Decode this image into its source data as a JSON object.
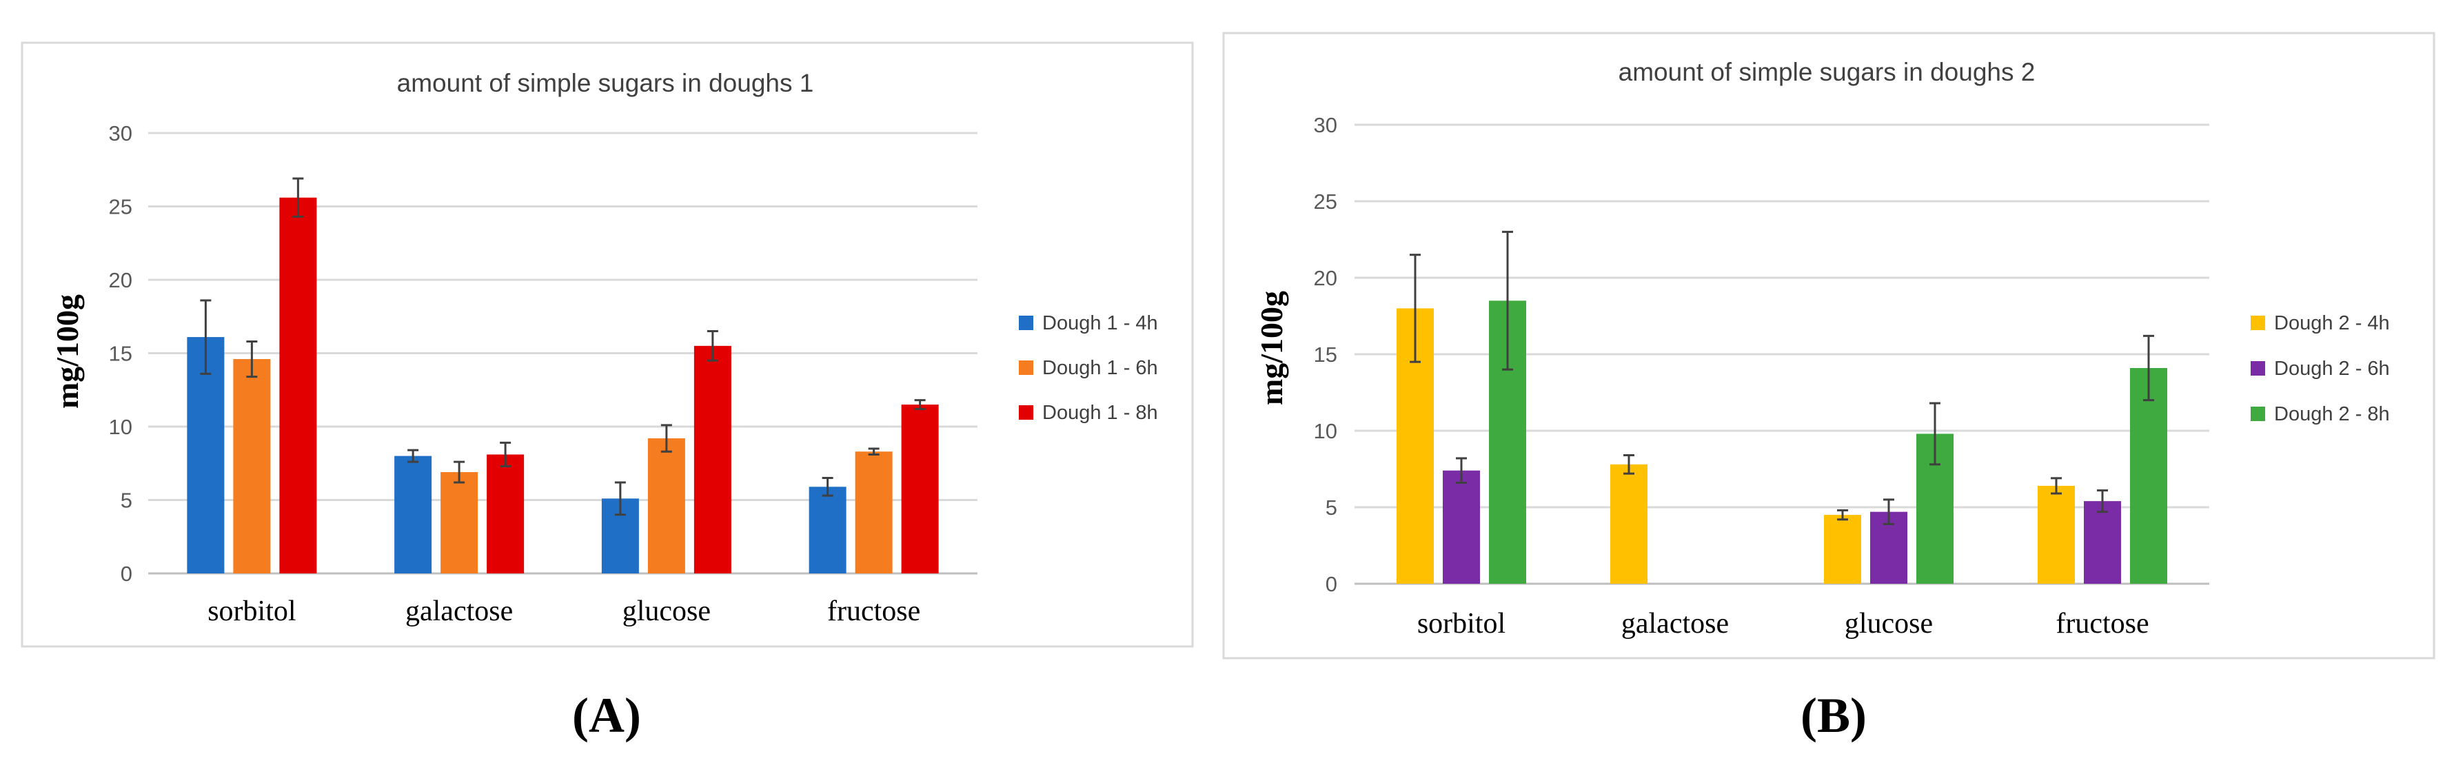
{
  "chart_data": [
    {
      "type": "bar",
      "title": "amount of simple sugars in doughs 1",
      "ylabel": "mg/100g",
      "xlabel": "",
      "ylim": [
        0,
        30
      ],
      "yticks": [
        "0",
        "5",
        "10",
        "15",
        "20",
        "25",
        "30"
      ],
      "categories": [
        "sorbitol",
        "galactose",
        "glucose",
        "fructose"
      ],
      "panel_label": "(A)",
      "legend_position": "right",
      "series": [
        {
          "name": "Dough 1 - 4h",
          "color": "#1F6FC6",
          "values": [
            16.1,
            8.0,
            5.1,
            5.9
          ],
          "errors": [
            2.5,
            0.4,
            1.1,
            0.6
          ]
        },
        {
          "name": "Dough 1 - 6h",
          "color": "#F57C1F",
          "values": [
            14.6,
            6.9,
            9.2,
            8.3
          ],
          "errors": [
            1.2,
            0.7,
            0.9,
            0.2
          ]
        },
        {
          "name": "Dough 1 - 8h",
          "color": "#E20000",
          "values": [
            25.6,
            8.1,
            15.5,
            11.5
          ],
          "errors": [
            1.3,
            0.8,
            1.0,
            0.3
          ]
        }
      ]
    },
    {
      "type": "bar",
      "title": "amount of simple sugars in doughs 2",
      "ylabel": "mg/100g",
      "xlabel": "",
      "ylim": [
        0,
        30
      ],
      "yticks": [
        "0",
        "5",
        "10",
        "15",
        "20",
        "25",
        "30"
      ],
      "categories": [
        "sorbitol",
        "galactose",
        "glucose",
        "fructose"
      ],
      "panel_label": "(B)",
      "legend_position": "right",
      "series": [
        {
          "name": "Dough 2 - 4h",
          "color": "#FFC000",
          "values": [
            18.0,
            7.8,
            4.5,
            6.4
          ],
          "errors": [
            3.5,
            0.6,
            0.3,
            0.5
          ]
        },
        {
          "name": "Dough 2 - 6h",
          "color": "#7A2BA6",
          "values": [
            7.4,
            null,
            4.7,
            5.4
          ],
          "errors": [
            0.8,
            null,
            0.8,
            0.7
          ]
        },
        {
          "name": "Dough 2 - 8h",
          "color": "#3FAA3F",
          "values": [
            18.5,
            null,
            9.8,
            14.1
          ],
          "errors": [
            4.5,
            null,
            2.0,
            2.1
          ]
        }
      ]
    }
  ]
}
